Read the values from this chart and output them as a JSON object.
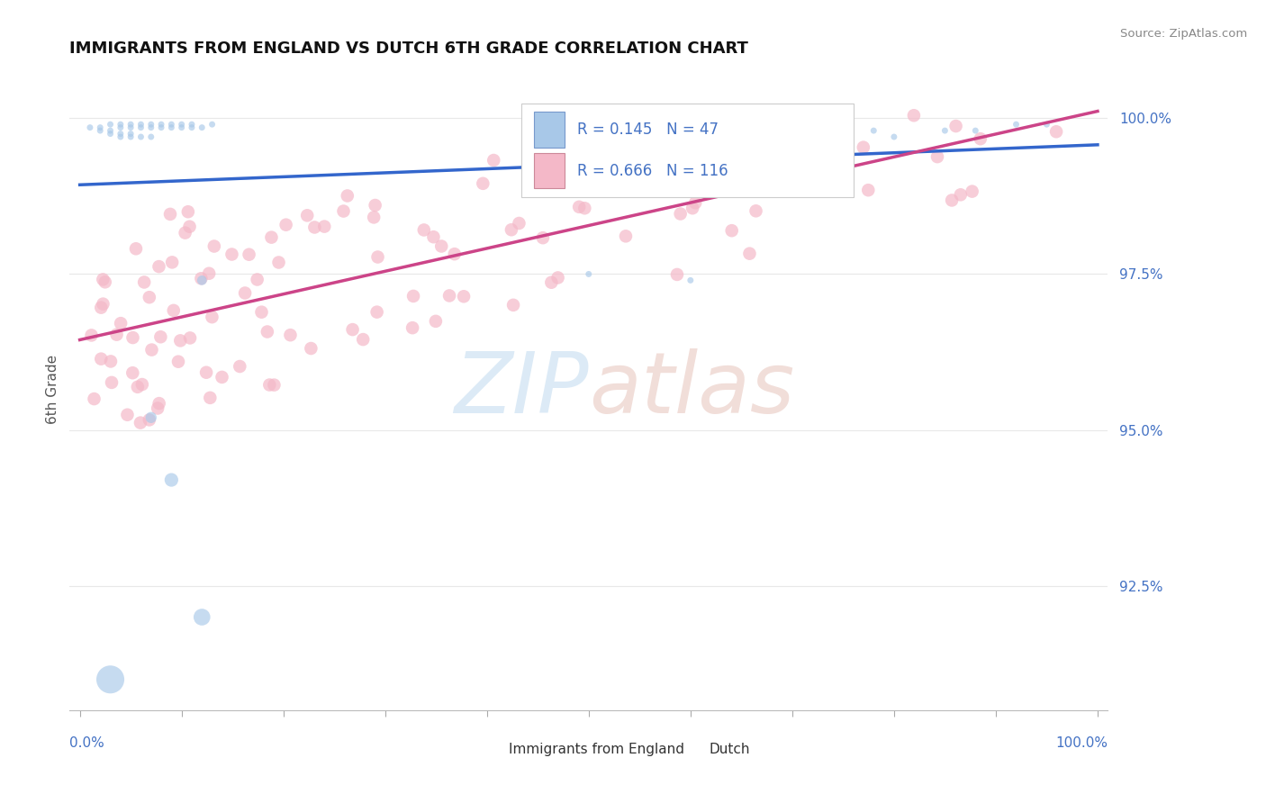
{
  "title": "IMMIGRANTS FROM ENGLAND VS DUTCH 6TH GRADE CORRELATION CHART",
  "source_text": "Source: ZipAtlas.com",
  "ylabel": "6th Grade",
  "legend_blue_R": 0.145,
  "legend_blue_N": 47,
  "legend_pink_R": 0.666,
  "legend_pink_N": 116,
  "blue_color": "#a8c8e8",
  "pink_color": "#f4b8c8",
  "blue_line_color": "#3366cc",
  "pink_line_color": "#cc4488",
  "axis_label_color": "#4472c4",
  "title_color": "#111111",
  "source_color": "#888888",
  "background_color": "#ffffff",
  "grid_color": "#e8e8e8",
  "ytick_vals": [
    0.925,
    0.95,
    0.975,
    1.0
  ],
  "ytick_labels": [
    "92.5%",
    "95.0%",
    "97.5%",
    "100.0%"
  ],
  "ymin": 0.905,
  "ymax": 1.008,
  "xmin": -0.01,
  "xmax": 1.01
}
